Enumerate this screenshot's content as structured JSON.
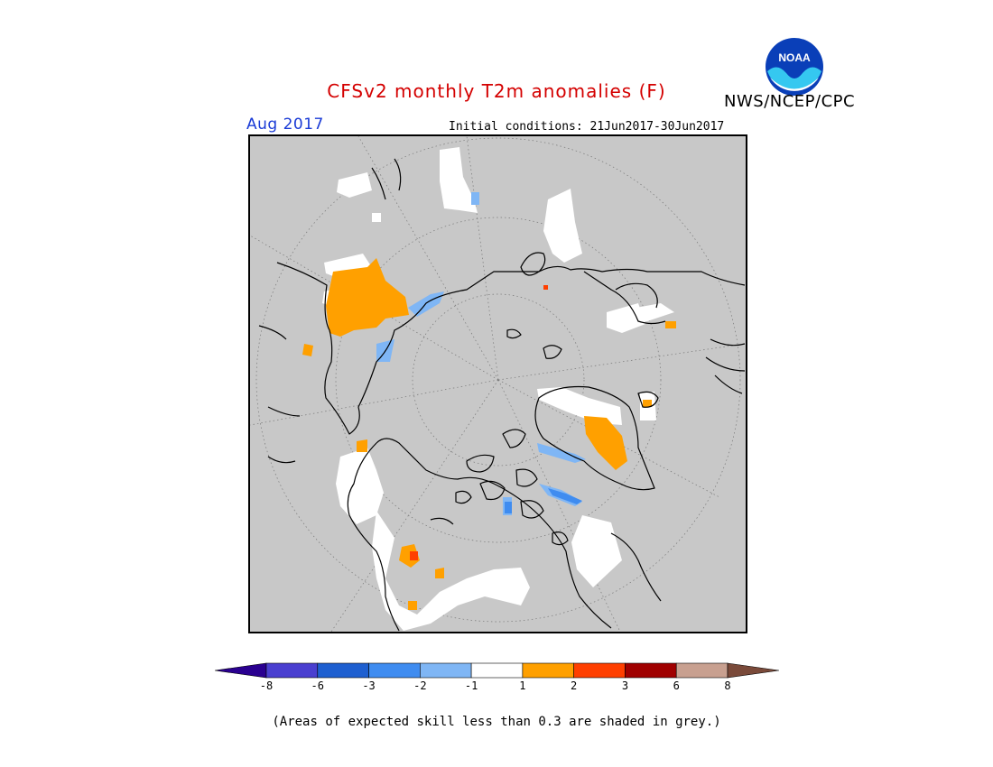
{
  "title": "CFSv2 monthly T2m anomalies (F)",
  "agency": "NWS/NCEP/CPC",
  "logo_text": "NOAA",
  "forecast_month": "Aug 2017",
  "initial_conditions": "Initial conditions: 21Jun2017-30Jun2017",
  "footnote": "(Areas of expected skill less than 0.3 are shaded in grey.)",
  "map": {
    "projection": "north-polar-stereographic",
    "background_color": "#c8c8c8",
    "coastline_color": "#000000"
  },
  "legend": {
    "bins": [
      {
        "color": "#2a0090"
      },
      {
        "color": "#4a3fd0"
      },
      {
        "color": "#1e5fd0"
      },
      {
        "color": "#3f8cf0"
      },
      {
        "color": "#7fb6f5"
      },
      {
        "color": "#ffffff"
      },
      {
        "color": "#ffa000"
      },
      {
        "color": "#ff3f00"
      },
      {
        "color": "#a00000"
      },
      {
        "color": "#c8a090"
      },
      {
        "color": "#7a4a3a"
      }
    ],
    "tick_labels": [
      "-8",
      "-6",
      "-3",
      "-2",
      "-1",
      "1",
      "2",
      "3",
      "6",
      "8"
    ]
  }
}
